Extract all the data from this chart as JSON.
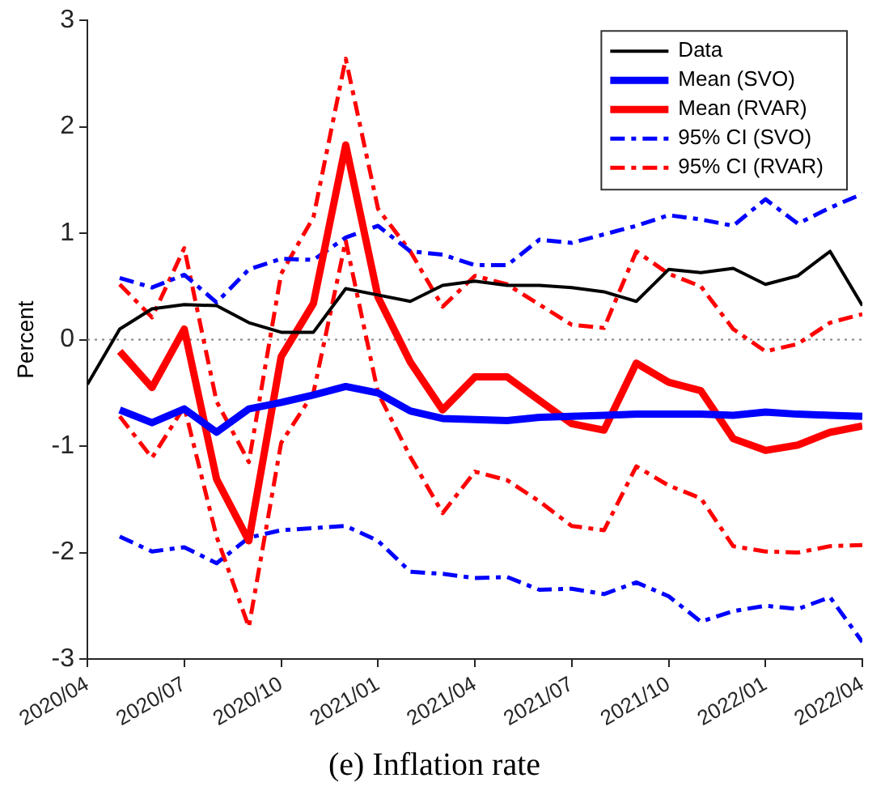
{
  "chart_data": {
    "type": "line",
    "title": "(e) Inflation rate",
    "ylabel": "Percent",
    "x": [
      "2020-04",
      "2020-05",
      "2020-06",
      "2020-07",
      "2020-08",
      "2020-09",
      "2020-10",
      "2020-11",
      "2020-12",
      "2021-01",
      "2021-02",
      "2021-03",
      "2021-04",
      "2021-05",
      "2021-06",
      "2021-07",
      "2021-08",
      "2021-09",
      "2021-10",
      "2021-11",
      "2021-12",
      "2022-01",
      "2022-02",
      "2022-03",
      "2022-04"
    ],
    "series": [
      {
        "name": "Data",
        "color": "#000000",
        "line_style": "solid",
        "values": [
          -0.42,
          0.1,
          0.29,
          0.33,
          0.32,
          0.16,
          0.07,
          0.07,
          0.48,
          0.42,
          0.36,
          0.51,
          0.55,
          0.51,
          0.51,
          0.49,
          0.45,
          0.36,
          0.66,
          0.63,
          0.67,
          0.52,
          0.6,
          0.83,
          0.32
        ]
      },
      {
        "name": "Mean (SVO)",
        "color": "#0000ff",
        "line_style": "solid",
        "values": [
          null,
          -0.66,
          -0.78,
          -0.65,
          -0.87,
          -0.65,
          -0.59,
          -0.52,
          -0.44,
          -0.5,
          -0.67,
          -0.74,
          -0.75,
          -0.76,
          -0.73,
          -0.72,
          -0.71,
          -0.7,
          -0.7,
          -0.7,
          -0.71,
          -0.68,
          -0.7,
          -0.71,
          -0.72
        ]
      },
      {
        "name": "Mean (RVAR)",
        "color": "#ff0000",
        "line_style": "solid",
        "values": [
          null,
          -0.11,
          -0.45,
          0.1,
          -1.31,
          -1.89,
          -0.16,
          0.34,
          1.83,
          0.4,
          -0.21,
          -0.66,
          -0.35,
          -0.35,
          -0.57,
          -0.79,
          -0.85,
          -0.22,
          -0.4,
          -0.48,
          -0.93,
          -1.04,
          -0.99,
          -0.87,
          -0.81
        ]
      },
      {
        "name": "95% CI (SVO)",
        "color": "#0000ff",
        "line_style": "dashdot",
        "values": [
          null,
          0.58,
          0.49,
          0.61,
          0.35,
          0.66,
          0.76,
          0.75,
          0.96,
          1.07,
          0.83,
          0.8,
          0.7,
          0.7,
          0.94,
          0.91,
          0.99,
          1.07,
          1.17,
          1.13,
          1.07,
          1.32,
          1.09,
          1.24,
          1.37
        ]
      },
      {
        "name": "95% CI (RVAR)",
        "color": "#ff0000",
        "line_style": "dashdot",
        "values": [
          null,
          0.52,
          0.21,
          0.86,
          -0.58,
          -1.15,
          0.62,
          1.15,
          2.64,
          1.23,
          0.83,
          0.31,
          0.6,
          0.52,
          0.33,
          0.14,
          0.11,
          0.83,
          0.62,
          0.5,
          0.1,
          -0.11,
          -0.04,
          0.16,
          0.24
        ]
      },
      {
        "name": null,
        "color": "#0000ff",
        "line_style": "dashdot",
        "values": [
          null,
          -1.85,
          -1.99,
          -1.95,
          -2.1,
          -1.86,
          -1.79,
          -1.77,
          -1.75,
          -1.89,
          -2.18,
          -2.2,
          -2.24,
          -2.23,
          -2.35,
          -2.34,
          -2.39,
          -2.28,
          -2.41,
          -2.65,
          -2.55,
          -2.5,
          -2.53,
          -2.42,
          -2.84
        ]
      },
      {
        "name": null,
        "color": "#ff0000",
        "line_style": "dashdot",
        "values": [
          null,
          -0.72,
          -1.11,
          -0.63,
          -1.85,
          -2.7,
          -0.97,
          -0.5,
          0.93,
          -0.5,
          -1.1,
          -1.63,
          -1.24,
          -1.32,
          -1.52,
          -1.75,
          -1.79,
          -1.19,
          -1.37,
          -1.49,
          -1.94,
          -1.99,
          -2.0,
          -1.94,
          -1.93
        ]
      }
    ],
    "xlim": [
      "2020-04",
      "2022-04"
    ],
    "xticks": [
      {
        "value": "2020-04",
        "label": "2020/04"
      },
      {
        "value": "2020-07",
        "label": "2020/07"
      },
      {
        "value": "2020-10",
        "label": "2020/10"
      },
      {
        "value": "2021-01",
        "label": "2021/01"
      },
      {
        "value": "2021-04",
        "label": "2021/04"
      },
      {
        "value": "2021-07",
        "label": "2021/07"
      },
      {
        "value": "2021-10",
        "label": "2021/10"
      },
      {
        "value": "2022-01",
        "label": "2022/01"
      },
      {
        "value": "2022-04",
        "label": "2022/04"
      }
    ],
    "ylim": [
      -3,
      3
    ],
    "yticks": [
      -3,
      -2,
      -1,
      0,
      1,
      2,
      3
    ],
    "ref_lines": [
      {
        "axis": "y",
        "value": 0,
        "label": null,
        "color": "#808080",
        "line_style": "dotted"
      }
    ],
    "grid": false,
    "legend": "top right",
    "marker": "none"
  }
}
